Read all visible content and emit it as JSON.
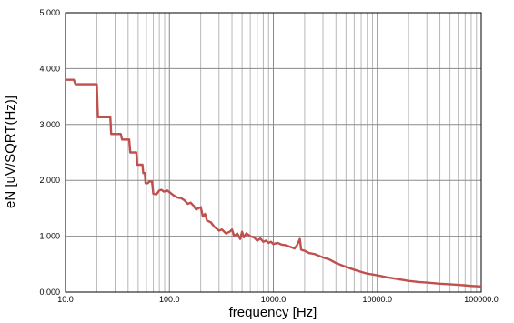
{
  "chart_data": {
    "type": "line",
    "title": "",
    "xlabel": "frequency [Hz]",
    "ylabel": "eN [uV/SQRT(Hz)]",
    "x_scale": "log",
    "xlim": [
      10,
      100000
    ],
    "ylim": [
      0,
      5
    ],
    "grid": true,
    "line_color": "#c0504d",
    "x_tick_labels": [
      "10.0",
      "100.0",
      "1000.0",
      "10000.0",
      "100000.0"
    ],
    "y_tick_labels": [
      "0.000",
      "1.000",
      "2.000",
      "3.000",
      "4.000",
      "5.000"
    ],
    "series": [
      {
        "x": [
          10,
          12,
          12.5,
          20,
          20.5,
          27,
          27.5,
          34,
          35,
          41,
          42,
          48,
          49,
          55,
          56,
          58,
          59,
          62,
          64,
          68,
          70,
          75,
          80,
          84,
          88,
          90,
          95,
          100,
          110,
          120,
          130,
          140,
          150,
          160,
          170,
          180,
          190,
          200,
          210,
          220,
          230,
          250,
          270,
          300,
          320,
          350,
          380,
          400,
          420,
          450,
          480,
          500,
          520,
          550,
          600,
          650,
          700,
          750,
          800,
          850,
          900,
          950,
          1000,
          1100,
          1200,
          1300,
          1400,
          1500,
          1600,
          1700,
          1800,
          1850,
          1900,
          2000,
          2200,
          2500,
          3000,
          3500,
          4000,
          5000,
          6000,
          7000,
          8000,
          10000,
          12000,
          15000,
          20000,
          25000,
          30000,
          40000,
          50000,
          60000,
          70000,
          80000,
          100000
        ],
        "y": [
          3.8,
          3.8,
          3.72,
          3.72,
          3.13,
          3.13,
          2.83,
          2.83,
          2.73,
          2.73,
          2.5,
          2.5,
          2.28,
          2.28,
          2.13,
          2.13,
          1.95,
          1.95,
          1.98,
          1.98,
          1.76,
          1.75,
          1.82,
          1.83,
          1.8,
          1.8,
          1.82,
          1.79,
          1.73,
          1.69,
          1.68,
          1.64,
          1.58,
          1.6,
          1.55,
          1.48,
          1.5,
          1.52,
          1.35,
          1.4,
          1.28,
          1.25,
          1.17,
          1.1,
          1.12,
          1.05,
          1.08,
          1.12,
          1.0,
          1.05,
          0.95,
          1.08,
          0.98,
          1.05,
          1.0,
          0.98,
          0.92,
          0.96,
          0.9,
          0.92,
          0.88,
          0.9,
          0.86,
          0.88,
          0.85,
          0.84,
          0.82,
          0.8,
          0.78,
          0.85,
          0.95,
          0.76,
          0.75,
          0.74,
          0.7,
          0.68,
          0.62,
          0.58,
          0.52,
          0.45,
          0.4,
          0.36,
          0.33,
          0.3,
          0.27,
          0.24,
          0.2,
          0.18,
          0.17,
          0.15,
          0.14,
          0.13,
          0.12,
          0.11,
          0.1
        ]
      }
    ]
  }
}
